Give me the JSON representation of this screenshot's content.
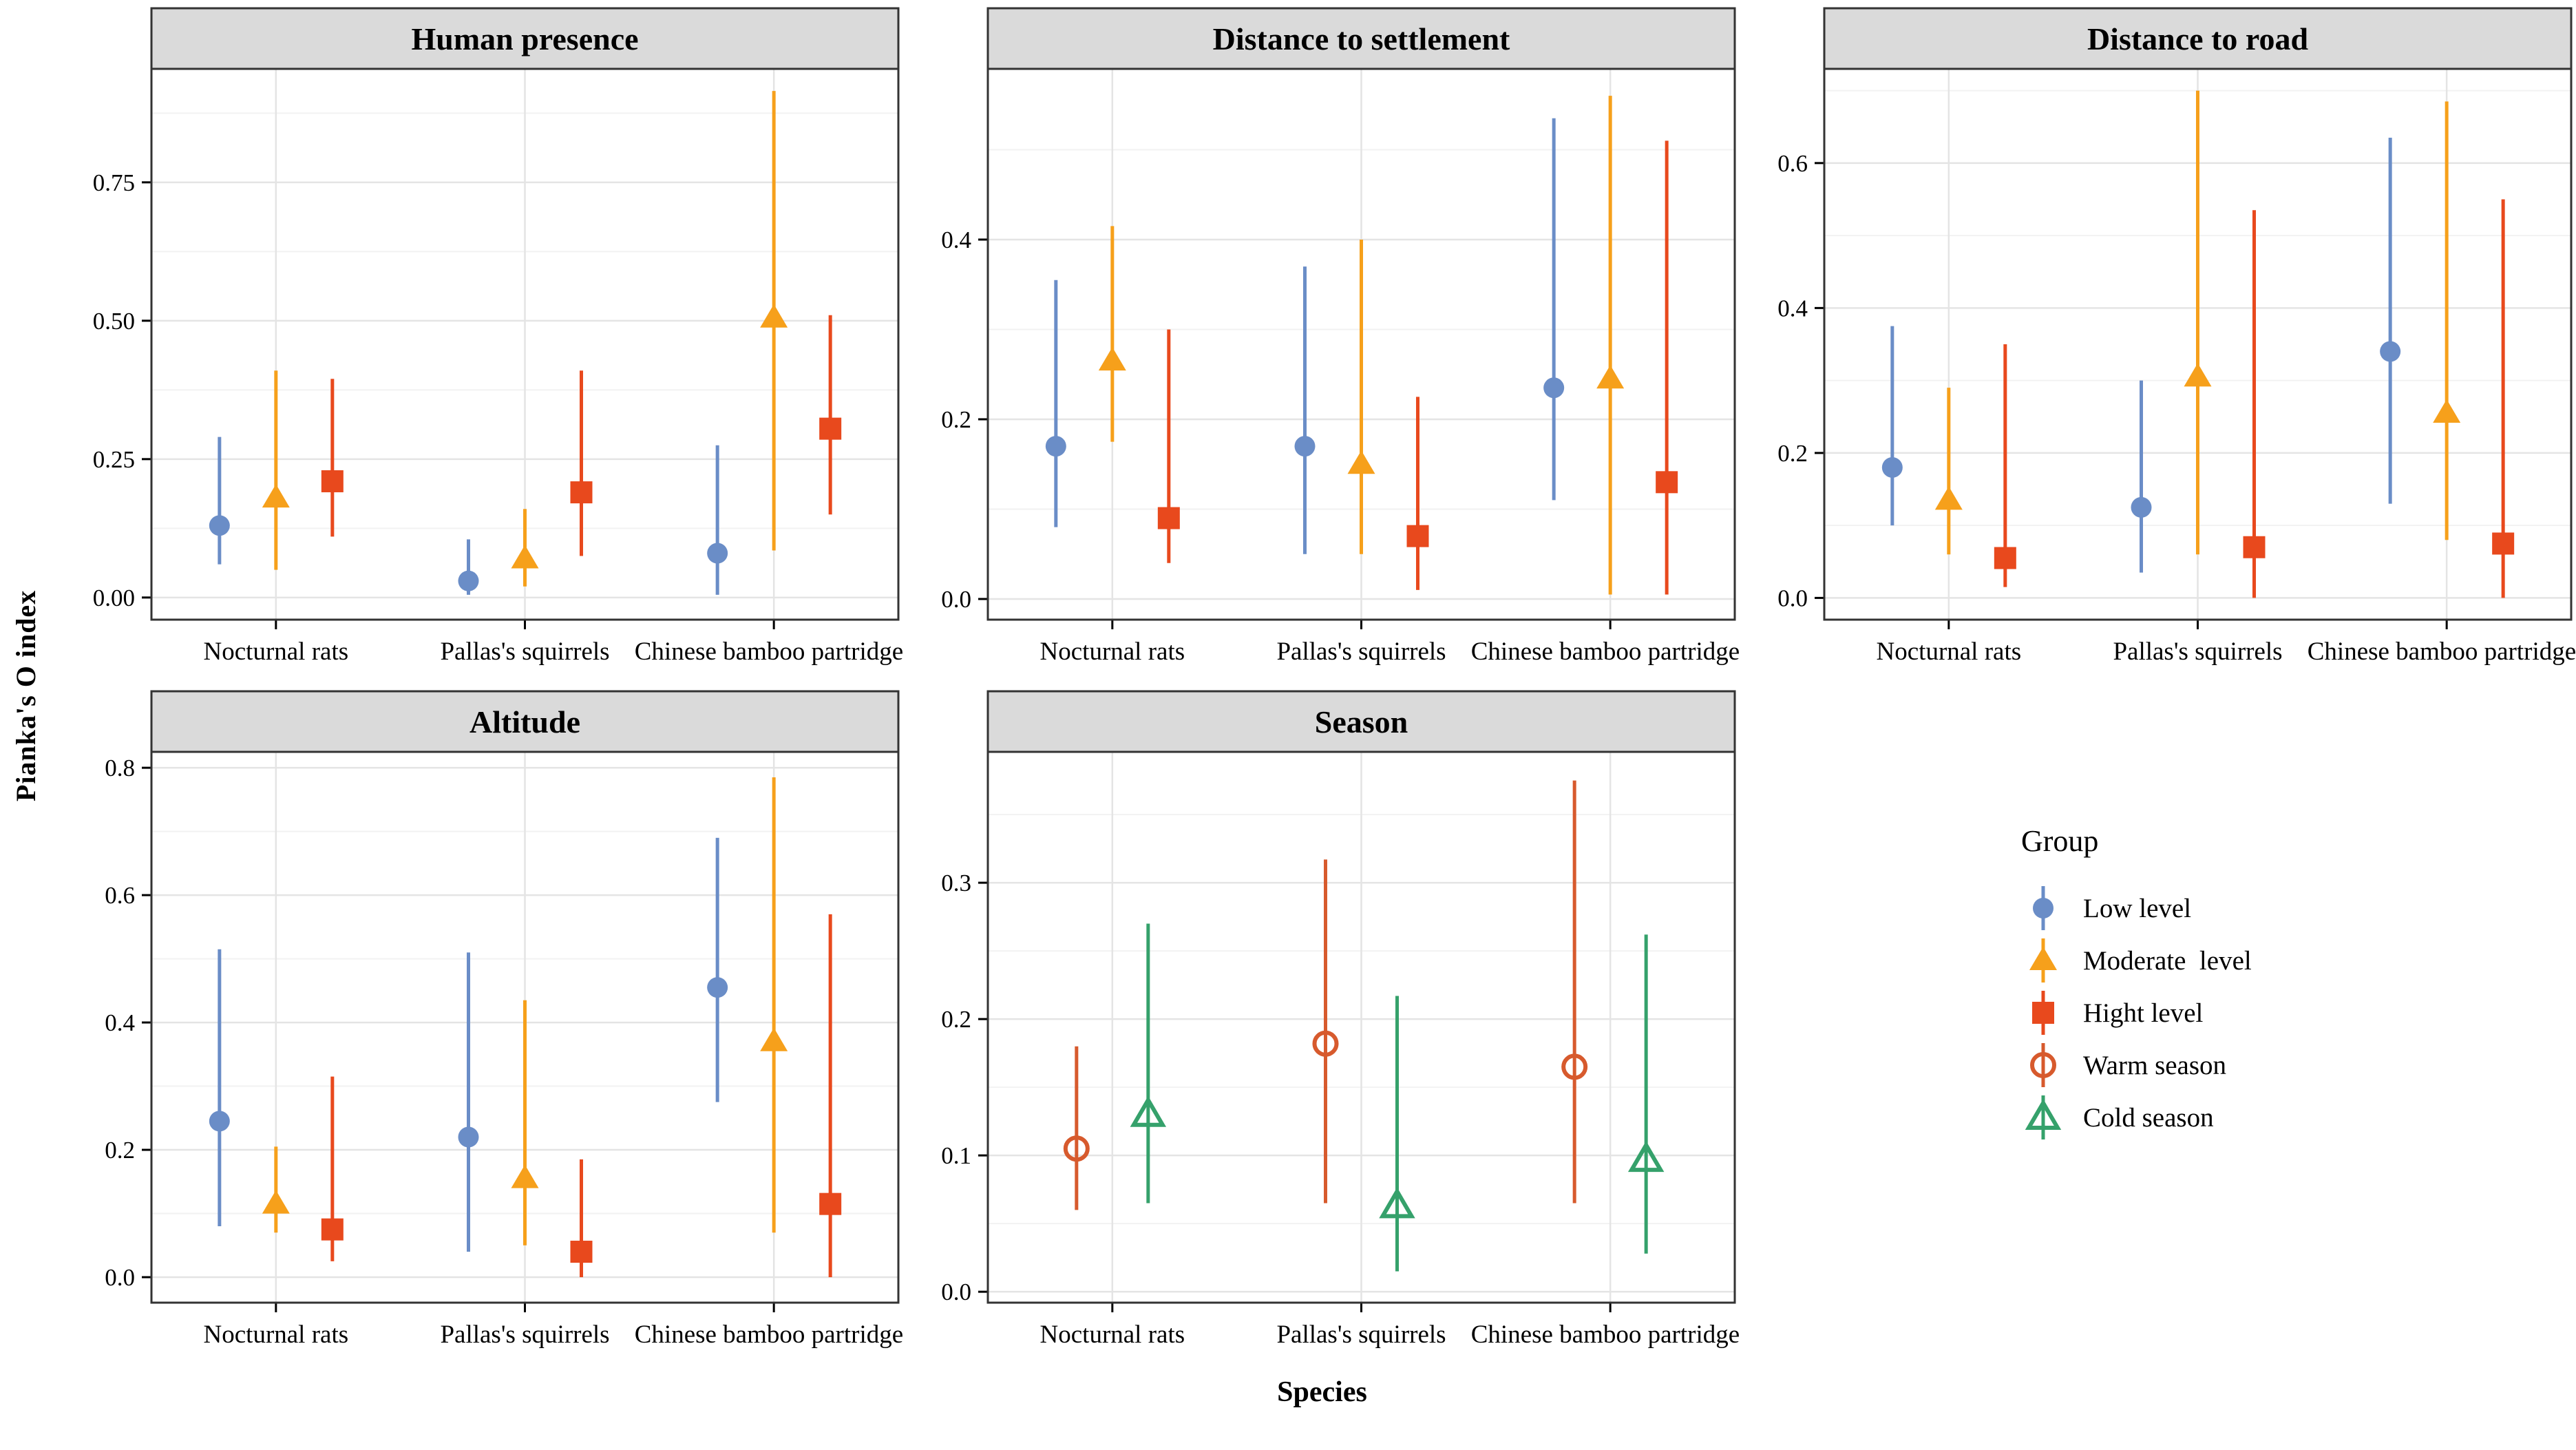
{
  "figure": {
    "y_axis_title": "Pianka's O index",
    "x_axis_title": "Species",
    "categories": [
      "Nocturnal rats",
      "Pallas's squirrels",
      "Chinese bamboo partridges"
    ],
    "colors": {
      "low": "#6A8DC7",
      "moderate": "#F6A01B",
      "high": "#E8491D",
      "warm": "#D75A2D",
      "cold": "#35A16B",
      "strip_fill": "#DADADA",
      "panel_border": "#333333",
      "grid_major": "#E4E4E4",
      "grid_minor": "#F2F2F2"
    },
    "legend": {
      "title": "Group",
      "items": [
        {
          "label": "Low level",
          "marker": "circle-filled",
          "color": "#6A8DC7"
        },
        {
          "label": "Moderate  level",
          "marker": "triangle-filled",
          "color": "#F6A01B"
        },
        {
          "label": "Hight level",
          "marker": "square-filled",
          "color": "#E8491D"
        },
        {
          "label": "Warm season",
          "marker": "circle-open",
          "color": "#D75A2D"
        },
        {
          "label": "Cold season",
          "marker": "triangle-open",
          "color": "#35A16B"
        }
      ]
    }
  },
  "chart_data": [
    {
      "type": "scatter",
      "title": "Human presence",
      "ylabel": "Pianka's O index",
      "xlabel": "Species",
      "categories": [
        "Nocturnal rats",
        "Pallas's squirrels",
        "Chinese bamboo partridges"
      ],
      "ylim": [
        -0.04,
        0.955
      ],
      "yticks": [
        0.0,
        0.25,
        0.5,
        0.75
      ],
      "ytick_labels": [
        "0.00",
        "0.25",
        "0.50",
        "0.75"
      ],
      "series": [
        {
          "name": "Low level",
          "marker": "circle-filled",
          "color": "#6A8DC7",
          "values": [
            {
              "y": 0.13,
              "lo": 0.06,
              "hi": 0.29
            },
            {
              "y": 0.03,
              "lo": 0.005,
              "hi": 0.105
            },
            {
              "y": 0.08,
              "lo": 0.005,
              "hi": 0.275
            }
          ]
        },
        {
          "name": "Moderate level",
          "marker": "triangle-filled",
          "color": "#F6A01B",
          "values": [
            {
              "y": 0.18,
              "lo": 0.05,
              "hi": 0.41
            },
            {
              "y": 0.07,
              "lo": 0.02,
              "hi": 0.16
            },
            {
              "y": 0.505,
              "lo": 0.085,
              "hi": 0.915
            }
          ]
        },
        {
          "name": "Hight level",
          "marker": "square-filled",
          "color": "#E8491D",
          "values": [
            {
              "y": 0.21,
              "lo": 0.11,
              "hi": 0.395
            },
            {
              "y": 0.19,
              "lo": 0.075,
              "hi": 0.41
            },
            {
              "y": 0.305,
              "lo": 0.15,
              "hi": 0.51
            }
          ]
        }
      ]
    },
    {
      "type": "scatter",
      "title": "Distance to settlement",
      "ylabel": "Pianka's O index",
      "xlabel": "Species",
      "categories": [
        "Nocturnal rats",
        "Pallas's squirrels",
        "Chinese bamboo partridges"
      ],
      "ylim": [
        -0.023,
        0.59
      ],
      "yticks": [
        0.0,
        0.2,
        0.4
      ],
      "ytick_labels": [
        "0.0",
        "0.2",
        "0.4"
      ],
      "series": [
        {
          "name": "Low level",
          "marker": "circle-filled",
          "color": "#6A8DC7",
          "values": [
            {
              "y": 0.17,
              "lo": 0.08,
              "hi": 0.355
            },
            {
              "y": 0.17,
              "lo": 0.05,
              "hi": 0.37
            },
            {
              "y": 0.235,
              "lo": 0.11,
              "hi": 0.535
            }
          ]
        },
        {
          "name": "Moderate level",
          "marker": "triangle-filled",
          "color": "#F6A01B",
          "values": [
            {
              "y": 0.265,
              "lo": 0.175,
              "hi": 0.415
            },
            {
              "y": 0.15,
              "lo": 0.05,
              "hi": 0.4
            },
            {
              "y": 0.245,
              "lo": 0.005,
              "hi": 0.56
            }
          ]
        },
        {
          "name": "Hight level",
          "marker": "square-filled",
          "color": "#E8491D",
          "values": [
            {
              "y": 0.09,
              "lo": 0.04,
              "hi": 0.3
            },
            {
              "y": 0.07,
              "lo": 0.01,
              "hi": 0.225
            },
            {
              "y": 0.13,
              "lo": 0.005,
              "hi": 0.51
            }
          ]
        }
      ]
    },
    {
      "type": "scatter",
      "title": "Distance to road",
      "ylabel": "Pianka's O index",
      "xlabel": "Species",
      "categories": [
        "Nocturnal rats",
        "Pallas's squirrels",
        "Chinese bamboo partridges"
      ],
      "ylim": [
        -0.03,
        0.73
      ],
      "yticks": [
        0.0,
        0.2,
        0.4,
        0.6
      ],
      "ytick_labels": [
        "0.0",
        "0.2",
        "0.4",
        "0.6"
      ],
      "series": [
        {
          "name": "Low level",
          "marker": "circle-filled",
          "color": "#6A8DC7",
          "values": [
            {
              "y": 0.18,
              "lo": 0.1,
              "hi": 0.375
            },
            {
              "y": 0.125,
              "lo": 0.035,
              "hi": 0.3
            },
            {
              "y": 0.34,
              "lo": 0.13,
              "hi": 0.635
            }
          ]
        },
        {
          "name": "Moderate level",
          "marker": "triangle-filled",
          "color": "#F6A01B",
          "values": [
            {
              "y": 0.135,
              "lo": 0.06,
              "hi": 0.29
            },
            {
              "y": 0.305,
              "lo": 0.06,
              "hi": 0.7
            },
            {
              "y": 0.255,
              "lo": 0.08,
              "hi": 0.685
            }
          ]
        },
        {
          "name": "Hight level",
          "marker": "square-filled",
          "color": "#E8491D",
          "values": [
            {
              "y": 0.055,
              "lo": 0.015,
              "hi": 0.35
            },
            {
              "y": 0.07,
              "lo": 0.0,
              "hi": 0.535
            },
            {
              "y": 0.075,
              "lo": 0.0,
              "hi": 0.55
            }
          ]
        }
      ]
    },
    {
      "type": "scatter",
      "title": "Altitude",
      "ylabel": "Pianka's O index",
      "xlabel": "Species",
      "categories": [
        "Nocturnal rats",
        "Pallas's squirrels",
        "Chinese bamboo partridges"
      ],
      "ylim": [
        -0.04,
        0.825
      ],
      "yticks": [
        0.0,
        0.2,
        0.4,
        0.6,
        0.8
      ],
      "ytick_labels": [
        "0.0",
        "0.2",
        "0.4",
        "0.6",
        "0.8"
      ],
      "series": [
        {
          "name": "Low level",
          "marker": "circle-filled",
          "color": "#6A8DC7",
          "values": [
            {
              "y": 0.245,
              "lo": 0.08,
              "hi": 0.515
            },
            {
              "y": 0.22,
              "lo": 0.04,
              "hi": 0.51
            },
            {
              "y": 0.455,
              "lo": 0.275,
              "hi": 0.69
            }
          ]
        },
        {
          "name": "Moderate level",
          "marker": "triangle-filled",
          "color": "#F6A01B",
          "values": [
            {
              "y": 0.115,
              "lo": 0.07,
              "hi": 0.205
            },
            {
              "y": 0.155,
              "lo": 0.05,
              "hi": 0.435
            },
            {
              "y": 0.37,
              "lo": 0.07,
              "hi": 0.785
            }
          ]
        },
        {
          "name": "Hight level",
          "marker": "square-filled",
          "color": "#E8491D",
          "values": [
            {
              "y": 0.075,
              "lo": 0.025,
              "hi": 0.315
            },
            {
              "y": 0.04,
              "lo": 0.0,
              "hi": 0.185
            },
            {
              "y": 0.115,
              "lo": 0.0,
              "hi": 0.57
            }
          ]
        }
      ]
    },
    {
      "type": "scatter",
      "title": "Season",
      "ylabel": "Pianka's O index",
      "xlabel": "Species",
      "categories": [
        "Nocturnal rats",
        "Pallas's squirrels",
        "Chinese bamboo partridges"
      ],
      "ylim": [
        -0.008,
        0.396
      ],
      "yticks": [
        0.0,
        0.1,
        0.2,
        0.3
      ],
      "ytick_labels": [
        "0.0",
        "0.1",
        "0.2",
        "0.3"
      ],
      "series": [
        {
          "name": "Warm season",
          "marker": "circle-open",
          "color": "#D75A2D",
          "values": [
            {
              "y": 0.105,
              "lo": 0.06,
              "hi": 0.18
            },
            {
              "y": 0.182,
              "lo": 0.065,
              "hi": 0.317
            },
            {
              "y": 0.165,
              "lo": 0.065,
              "hi": 0.375
            }
          ]
        },
        {
          "name": "Cold season",
          "marker": "triangle-open",
          "color": "#35A16B",
          "values": [
            {
              "y": 0.13,
              "lo": 0.065,
              "hi": 0.27
            },
            {
              "y": 0.063,
              "lo": 0.015,
              "hi": 0.217
            },
            {
              "y": 0.097,
              "lo": 0.028,
              "hi": 0.262
            }
          ]
        }
      ]
    }
  ]
}
